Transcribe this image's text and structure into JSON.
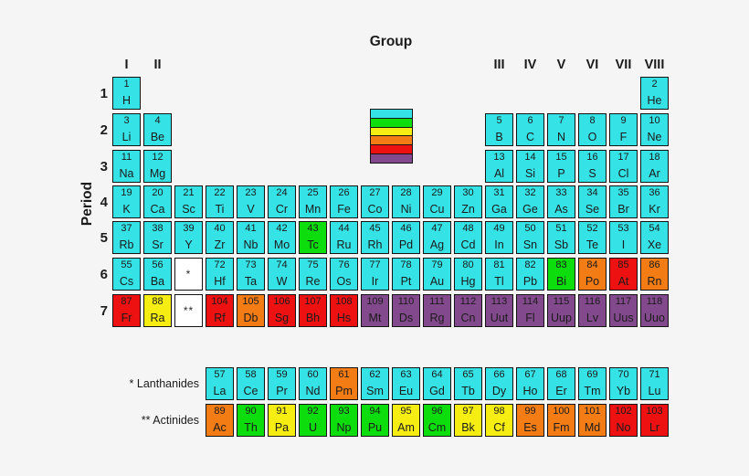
{
  "background": "#f5f5f5",
  "header": {
    "group_title": "Group",
    "period_title": "Period"
  },
  "group_labels": [
    {
      "label": "I",
      "col": 1
    },
    {
      "label": "II",
      "col": 2
    },
    {
      "label": "III",
      "col": 13
    },
    {
      "label": "IV",
      "col": 14
    },
    {
      "label": "V",
      "col": 15
    },
    {
      "label": "VI",
      "col": 16
    },
    {
      "label": "VII",
      "col": 17
    },
    {
      "label": "VIII",
      "col": 18
    }
  ],
  "periods": [
    "1",
    "2",
    "3",
    "4",
    "5",
    "6",
    "7"
  ],
  "legend": {
    "swatches": [
      "cyan",
      "green",
      "yellow",
      "orange",
      "red",
      "purple"
    ]
  },
  "palette": {
    "cyan": "#35e3e6",
    "green": "#0ddd0d",
    "yellow": "#f6ee12",
    "orange": "#f47c14",
    "red": "#ee1111",
    "purple": "#82498c",
    "white": "#ffffff",
    "border": "#141414",
    "text": "#1b1b1b"
  },
  "placeholders": [
    {
      "label": "*",
      "p": "6",
      "c": 3
    },
    {
      "label": "**",
      "p": "7",
      "c": 3
    }
  ],
  "elements": [
    {
      "n": 1,
      "s": "H",
      "p": "1",
      "c": 1,
      "k": "cyan"
    },
    {
      "n": 2,
      "s": "He",
      "p": "1",
      "c": 18,
      "k": "cyan"
    },
    {
      "n": 3,
      "s": "Li",
      "p": "2",
      "c": 1,
      "k": "cyan"
    },
    {
      "n": 4,
      "s": "Be",
      "p": "2",
      "c": 2,
      "k": "cyan"
    },
    {
      "n": 5,
      "s": "B",
      "p": "2",
      "c": 13,
      "k": "cyan"
    },
    {
      "n": 6,
      "s": "C",
      "p": "2",
      "c": 14,
      "k": "cyan"
    },
    {
      "n": 7,
      "s": "N",
      "p": "2",
      "c": 15,
      "k": "cyan"
    },
    {
      "n": 8,
      "s": "O",
      "p": "2",
      "c": 16,
      "k": "cyan"
    },
    {
      "n": 9,
      "s": "F",
      "p": "2",
      "c": 17,
      "k": "cyan"
    },
    {
      "n": 10,
      "s": "Ne",
      "p": "2",
      "c": 18,
      "k": "cyan"
    },
    {
      "n": 11,
      "s": "Na",
      "p": "3",
      "c": 1,
      "k": "cyan"
    },
    {
      "n": 12,
      "s": "Mg",
      "p": "3",
      "c": 2,
      "k": "cyan"
    },
    {
      "n": 13,
      "s": "Al",
      "p": "3",
      "c": 13,
      "k": "cyan"
    },
    {
      "n": 14,
      "s": "Si",
      "p": "3",
      "c": 14,
      "k": "cyan"
    },
    {
      "n": 15,
      "s": "P",
      "p": "3",
      "c": 15,
      "k": "cyan"
    },
    {
      "n": 16,
      "s": "S",
      "p": "3",
      "c": 16,
      "k": "cyan"
    },
    {
      "n": 17,
      "s": "Cl",
      "p": "3",
      "c": 17,
      "k": "cyan"
    },
    {
      "n": 18,
      "s": "Ar",
      "p": "3",
      "c": 18,
      "k": "cyan"
    },
    {
      "n": 19,
      "s": "K",
      "p": "4",
      "c": 1,
      "k": "cyan"
    },
    {
      "n": 20,
      "s": "Ca",
      "p": "4",
      "c": 2,
      "k": "cyan"
    },
    {
      "n": 21,
      "s": "Sc",
      "p": "4",
      "c": 3,
      "k": "cyan"
    },
    {
      "n": 22,
      "s": "Ti",
      "p": "4",
      "c": 4,
      "k": "cyan"
    },
    {
      "n": 23,
      "s": "V",
      "p": "4",
      "c": 5,
      "k": "cyan"
    },
    {
      "n": 24,
      "s": "Cr",
      "p": "4",
      "c": 6,
      "k": "cyan"
    },
    {
      "n": 25,
      "s": "Mn",
      "p": "4",
      "c": 7,
      "k": "cyan"
    },
    {
      "n": 26,
      "s": "Fe",
      "p": "4",
      "c": 8,
      "k": "cyan"
    },
    {
      "n": 27,
      "s": "Co",
      "p": "4",
      "c": 9,
      "k": "cyan"
    },
    {
      "n": 28,
      "s": "Ni",
      "p": "4",
      "c": 10,
      "k": "cyan"
    },
    {
      "n": 29,
      "s": "Cu",
      "p": "4",
      "c": 11,
      "k": "cyan"
    },
    {
      "n": 30,
      "s": "Zn",
      "p": "4",
      "c": 12,
      "k": "cyan"
    },
    {
      "n": 31,
      "s": "Ga",
      "p": "4",
      "c": 13,
      "k": "cyan"
    },
    {
      "n": 32,
      "s": "Ge",
      "p": "4",
      "c": 14,
      "k": "cyan"
    },
    {
      "n": 33,
      "s": "As",
      "p": "4",
      "c": 15,
      "k": "cyan"
    },
    {
      "n": 34,
      "s": "Se",
      "p": "4",
      "c": 16,
      "k": "cyan"
    },
    {
      "n": 35,
      "s": "Br",
      "p": "4",
      "c": 17,
      "k": "cyan"
    },
    {
      "n": 36,
      "s": "Kr",
      "p": "4",
      "c": 18,
      "k": "cyan"
    },
    {
      "n": 37,
      "s": "Rb",
      "p": "5",
      "c": 1,
      "k": "cyan"
    },
    {
      "n": 38,
      "s": "Sr",
      "p": "5",
      "c": 2,
      "k": "cyan"
    },
    {
      "n": 39,
      "s": "Y",
      "p": "5",
      "c": 3,
      "k": "cyan"
    },
    {
      "n": 40,
      "s": "Zr",
      "p": "5",
      "c": 4,
      "k": "cyan"
    },
    {
      "n": 41,
      "s": "Nb",
      "p": "5",
      "c": 5,
      "k": "cyan"
    },
    {
      "n": 42,
      "s": "Mo",
      "p": "5",
      "c": 6,
      "k": "cyan"
    },
    {
      "n": 43,
      "s": "Tc",
      "p": "5",
      "c": 7,
      "k": "green"
    },
    {
      "n": 44,
      "s": "Ru",
      "p": "5",
      "c": 8,
      "k": "cyan"
    },
    {
      "n": 45,
      "s": "Rh",
      "p": "5",
      "c": 9,
      "k": "cyan"
    },
    {
      "n": 46,
      "s": "Pd",
      "p": "5",
      "c": 10,
      "k": "cyan"
    },
    {
      "n": 47,
      "s": "Ag",
      "p": "5",
      "c": 11,
      "k": "cyan"
    },
    {
      "n": 48,
      "s": "Cd",
      "p": "5",
      "c": 12,
      "k": "cyan"
    },
    {
      "n": 49,
      "s": "In",
      "p": "5",
      "c": 13,
      "k": "cyan"
    },
    {
      "n": 50,
      "s": "Sn",
      "p": "5",
      "c": 14,
      "k": "cyan"
    },
    {
      "n": 51,
      "s": "Sb",
      "p": "5",
      "c": 15,
      "k": "cyan"
    },
    {
      "n": 52,
      "s": "Te",
      "p": "5",
      "c": 16,
      "k": "cyan"
    },
    {
      "n": 53,
      "s": "I",
      "p": "5",
      "c": 17,
      "k": "cyan"
    },
    {
      "n": 54,
      "s": "Xe",
      "p": "5",
      "c": 18,
      "k": "cyan"
    },
    {
      "n": 55,
      "s": "Cs",
      "p": "6",
      "c": 1,
      "k": "cyan"
    },
    {
      "n": 56,
      "s": "Ba",
      "p": "6",
      "c": 2,
      "k": "cyan"
    },
    {
      "n": 72,
      "s": "Hf",
      "p": "6",
      "c": 4,
      "k": "cyan"
    },
    {
      "n": 73,
      "s": "Ta",
      "p": "6",
      "c": 5,
      "k": "cyan"
    },
    {
      "n": 74,
      "s": "W",
      "p": "6",
      "c": 6,
      "k": "cyan"
    },
    {
      "n": 75,
      "s": "Re",
      "p": "6",
      "c": 7,
      "k": "cyan"
    },
    {
      "n": 76,
      "s": "Os",
      "p": "6",
      "c": 8,
      "k": "cyan"
    },
    {
      "n": 77,
      "s": "Ir",
      "p": "6",
      "c": 9,
      "k": "cyan"
    },
    {
      "n": 78,
      "s": "Pt",
      "p": "6",
      "c": 10,
      "k": "cyan"
    },
    {
      "n": 79,
      "s": "Au",
      "p": "6",
      "c": 11,
      "k": "cyan"
    },
    {
      "n": 80,
      "s": "Hg",
      "p": "6",
      "c": 12,
      "k": "cyan"
    },
    {
      "n": 81,
      "s": "Tl",
      "p": "6",
      "c": 13,
      "k": "cyan"
    },
    {
      "n": 82,
      "s": "Pb",
      "p": "6",
      "c": 14,
      "k": "cyan"
    },
    {
      "n": 83,
      "s": "Bi",
      "p": "6",
      "c": 15,
      "k": "green"
    },
    {
      "n": 84,
      "s": "Po",
      "p": "6",
      "c": 16,
      "k": "orange"
    },
    {
      "n": 85,
      "s": "At",
      "p": "6",
      "c": 17,
      "k": "red"
    },
    {
      "n": 86,
      "s": "Rn",
      "p": "6",
      "c": 18,
      "k": "orange"
    },
    {
      "n": 87,
      "s": "Fr",
      "p": "7",
      "c": 1,
      "k": "red"
    },
    {
      "n": 88,
      "s": "Ra",
      "p": "7",
      "c": 2,
      "k": "yellow"
    },
    {
      "n": 104,
      "s": "Rf",
      "p": "7",
      "c": 4,
      "k": "red"
    },
    {
      "n": 105,
      "s": "Db",
      "p": "7",
      "c": 5,
      "k": "orange"
    },
    {
      "n": 106,
      "s": "Sg",
      "p": "7",
      "c": 6,
      "k": "red"
    },
    {
      "n": 107,
      "s": "Bh",
      "p": "7",
      "c": 7,
      "k": "red"
    },
    {
      "n": 108,
      "s": "Hs",
      "p": "7",
      "c": 8,
      "k": "red"
    },
    {
      "n": 109,
      "s": "Mt",
      "p": "7",
      "c": 9,
      "k": "purple"
    },
    {
      "n": 110,
      "s": "Ds",
      "p": "7",
      "c": 10,
      "k": "purple"
    },
    {
      "n": 111,
      "s": "Rg",
      "p": "7",
      "c": 11,
      "k": "purple"
    },
    {
      "n": 112,
      "s": "Cn",
      "p": "7",
      "c": 12,
      "k": "purple"
    },
    {
      "n": 113,
      "s": "Uut",
      "p": "7",
      "c": 13,
      "k": "purple"
    },
    {
      "n": 114,
      "s": "Fl",
      "p": "7",
      "c": 14,
      "k": "purple"
    },
    {
      "n": 115,
      "s": "Uup",
      "p": "7",
      "c": 15,
      "k": "purple"
    },
    {
      "n": 116,
      "s": "Lv",
      "p": "7",
      "c": 16,
      "k": "purple"
    },
    {
      "n": 117,
      "s": "Uus",
      "p": "7",
      "c": 17,
      "k": "purple"
    },
    {
      "n": 118,
      "s": "Uuo",
      "p": "7",
      "c": 18,
      "k": "purple"
    }
  ],
  "footnote_rows": [
    {
      "label": "* Lanthanides",
      "elements": [
        {
          "n": 57,
          "s": "La",
          "c": 4,
          "k": "cyan"
        },
        {
          "n": 58,
          "s": "Ce",
          "c": 5,
          "k": "cyan"
        },
        {
          "n": 59,
          "s": "Pr",
          "c": 6,
          "k": "cyan"
        },
        {
          "n": 60,
          "s": "Nd",
          "c": 7,
          "k": "cyan"
        },
        {
          "n": 61,
          "s": "Pm",
          "c": 8,
          "k": "orange"
        },
        {
          "n": 62,
          "s": "Sm",
          "c": 9,
          "k": "cyan"
        },
        {
          "n": 63,
          "s": "Eu",
          "c": 10,
          "k": "cyan"
        },
        {
          "n": 64,
          "s": "Gd",
          "c": 11,
          "k": "cyan"
        },
        {
          "n": 65,
          "s": "Tb",
          "c": 12,
          "k": "cyan"
        },
        {
          "n": 66,
          "s": "Dy",
          "c": 13,
          "k": "cyan"
        },
        {
          "n": 67,
          "s": "Ho",
          "c": 14,
          "k": "cyan"
        },
        {
          "n": 68,
          "s": "Er",
          "c": 15,
          "k": "cyan"
        },
        {
          "n": 69,
          "s": "Tm",
          "c": 16,
          "k": "cyan"
        },
        {
          "n": 70,
          "s": "Yb",
          "c": 17,
          "k": "cyan"
        },
        {
          "n": 71,
          "s": "Lu",
          "c": 18,
          "k": "cyan"
        }
      ]
    },
    {
      "label": "** Actinides",
      "elements": [
        {
          "n": 89,
          "s": "Ac",
          "c": 4,
          "k": "orange"
        },
        {
          "n": 90,
          "s": "Th",
          "c": 5,
          "k": "green"
        },
        {
          "n": 91,
          "s": "Pa",
          "c": 6,
          "k": "yellow"
        },
        {
          "n": 92,
          "s": "U",
          "c": 7,
          "k": "green"
        },
        {
          "n": 93,
          "s": "Np",
          "c": 8,
          "k": "green"
        },
        {
          "n": 94,
          "s": "Pu",
          "c": 9,
          "k": "green"
        },
        {
          "n": 95,
          "s": "Am",
          "c": 10,
          "k": "yellow"
        },
        {
          "n": 96,
          "s": "Cm",
          "c": 11,
          "k": "green"
        },
        {
          "n": 97,
          "s": "Bk",
          "c": 12,
          "k": "yellow"
        },
        {
          "n": 98,
          "s": "Cf",
          "c": 13,
          "k": "yellow"
        },
        {
          "n": 99,
          "s": "Es",
          "c": 14,
          "k": "orange"
        },
        {
          "n": 100,
          "s": "Fm",
          "c": 15,
          "k": "orange"
        },
        {
          "n": 101,
          "s": "Md",
          "c": 16,
          "k": "orange"
        },
        {
          "n": 102,
          "s": "No",
          "c": 17,
          "k": "red"
        },
        {
          "n": 103,
          "s": "Lr",
          "c": 18,
          "k": "red"
        }
      ]
    }
  ]
}
